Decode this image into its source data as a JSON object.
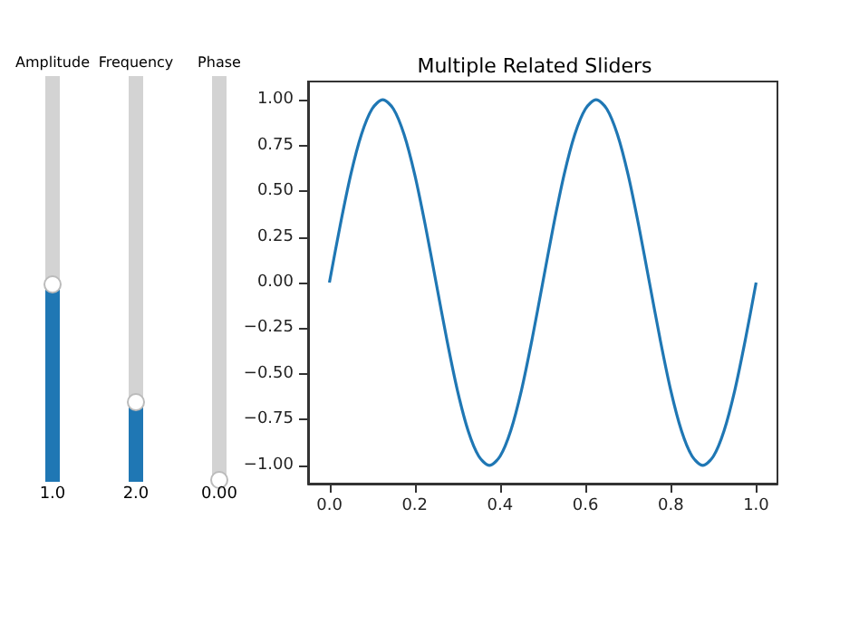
{
  "chart_data": {
    "type": "line",
    "title": "Multiple Related Sliders",
    "x": [
      0,
      0.025,
      0.05,
      0.075,
      0.1,
      0.125,
      0.15,
      0.175,
      0.2,
      0.225,
      0.25,
      0.275,
      0.3,
      0.325,
      0.35,
      0.375,
      0.4,
      0.425,
      0.45,
      0.475,
      0.5,
      0.525,
      0.55,
      0.575,
      0.6,
      0.625,
      0.65,
      0.675,
      0.7,
      0.725,
      0.75,
      0.775,
      0.8,
      0.825,
      0.85,
      0.875,
      0.9,
      0.925,
      0.95,
      0.975,
      1
    ],
    "series": [
      {
        "color": "#1f77b4",
        "values": [
          0,
          0.31,
          0.59,
          0.81,
          0.95,
          1,
          0.95,
          0.81,
          0.59,
          0.31,
          0,
          -0.31,
          -0.59,
          -0.81,
          -0.95,
          -1,
          -0.95,
          -0.81,
          -0.59,
          -0.31,
          0,
          0.31,
          0.59,
          0.81,
          0.95,
          1,
          0.95,
          0.81,
          0.59,
          0.31,
          0,
          -0.31,
          -0.59,
          -0.81,
          -0.95,
          -1,
          -0.95,
          -0.81,
          -0.59,
          -0.31,
          0
        ]
      }
    ],
    "xlim": [
      -0.05,
      1.05
    ],
    "xticks": [
      {
        "value": 0,
        "label": "0.0"
      },
      {
        "value": 0.2,
        "label": "0.2"
      },
      {
        "value": 0.4,
        "label": "0.4"
      },
      {
        "value": 0.6,
        "label": "0.6"
      },
      {
        "value": 0.8,
        "label": "0.8"
      },
      {
        "value": 1,
        "label": "1.0"
      }
    ],
    "ylim": [
      -1.1,
      1.1
    ],
    "yticks": [
      {
        "value": -1,
        "label": "−1.00"
      },
      {
        "value": -0.75,
        "label": "−0.75"
      },
      {
        "value": -0.5,
        "label": "−0.50"
      },
      {
        "value": -0.25,
        "label": "−0.25"
      },
      {
        "value": 0,
        "label": "0.00"
      },
      {
        "value": 0.25,
        "label": "0.25"
      },
      {
        "value": 0.5,
        "label": "0.50"
      },
      {
        "value": 0.75,
        "label": "0.75"
      },
      {
        "value": 1,
        "label": "1.00"
      }
    ],
    "annotations": [
      "Amplitude",
      "1.0",
      "Frequency",
      "2.0",
      "Phase",
      "0.00"
    ],
    "grid": false,
    "marker": "none",
    "line_style": "solid"
  }
}
